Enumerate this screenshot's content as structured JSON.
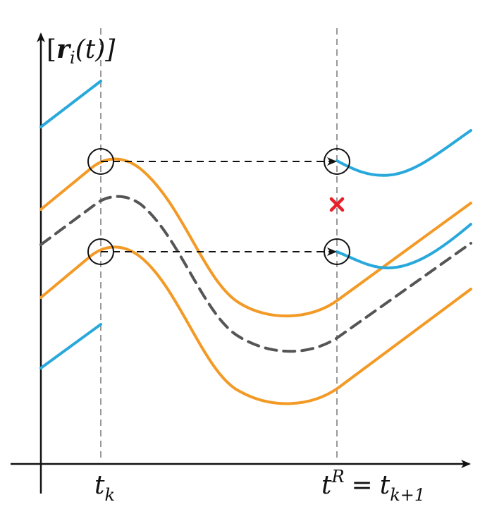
{
  "y_axis_label": {
    "open": "[",
    "symbol": "r",
    "subscript": "i",
    "close": "(t)]"
  },
  "x_labels": [
    {
      "symbol": "t",
      "subscript": "k"
    },
    {
      "symbol": "t",
      "superscript": "R",
      "equals": "=",
      "rhs_symbol": "t",
      "rhs_subscript": "k+1"
    }
  ]
}
